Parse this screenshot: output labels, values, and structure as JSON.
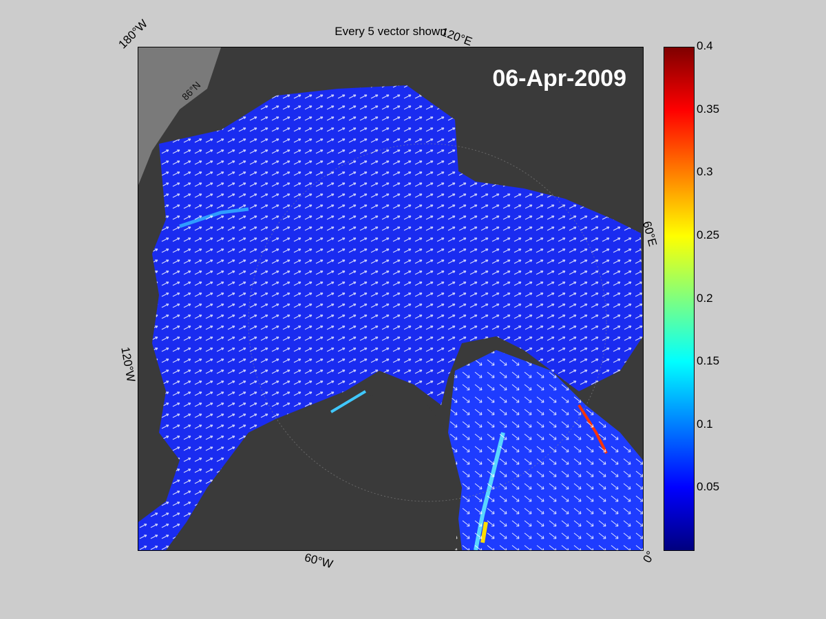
{
  "title": "Every 5 vector shown",
  "date": "06-Apr-2009",
  "labels": {
    "lon_180w": "180°W",
    "lon_120e": "120°E",
    "lon_60e": "60°E",
    "lon_120w": "120°W",
    "lon_60w": "60°W",
    "lon_0": "0°",
    "lat_86n": "86°N"
  },
  "colorbar": {
    "min": 0,
    "max": 0.4,
    "colormap": "jet",
    "ticks": [
      "0.05",
      "0.1",
      "0.15",
      "0.2",
      "0.25",
      "0.3",
      "0.35",
      "0.4"
    ]
  },
  "colors": {
    "background": "#cccccc",
    "land": "#3a3a3a",
    "ice_low": "#1a2cf0",
    "vector": "#ffffff"
  }
}
